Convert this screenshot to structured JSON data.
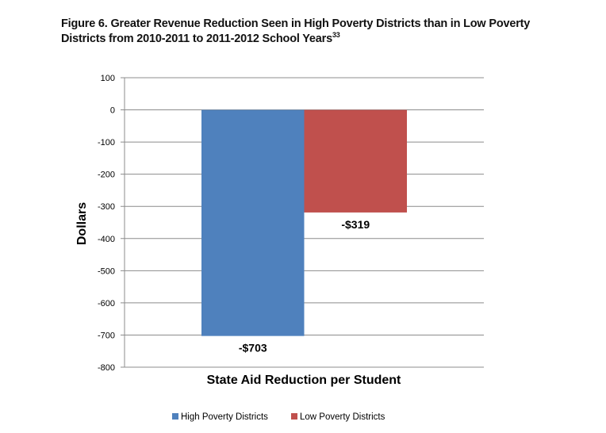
{
  "title": {
    "line1": "Figure 6. Greater Revenue Reduction Seen in High Poverty Districts than in Low Poverty",
    "line2": "Districts from 2010-2011 to 2011-2012 School Years",
    "footnote": "33"
  },
  "chart_data": {
    "type": "bar",
    "categories": [
      "State Aid Reduction per Student"
    ],
    "series": [
      {
        "name": "High Poverty Districts",
        "values": [
          -703
        ],
        "label": "-$703",
        "color": "#4F81BD"
      },
      {
        "name": "Low Poverty Districts",
        "values": [
          -319
        ],
        "label": "-$319",
        "color": "#C0504D"
      }
    ],
    "xlabel": "State Aid Reduction per Student",
    "ylabel": "Dollars",
    "ylim": [
      -800,
      100
    ],
    "yticks": [
      100,
      0,
      -100,
      -200,
      -300,
      -400,
      -500,
      -600,
      -700,
      -800
    ],
    "grid": true,
    "legend": "bottom"
  }
}
